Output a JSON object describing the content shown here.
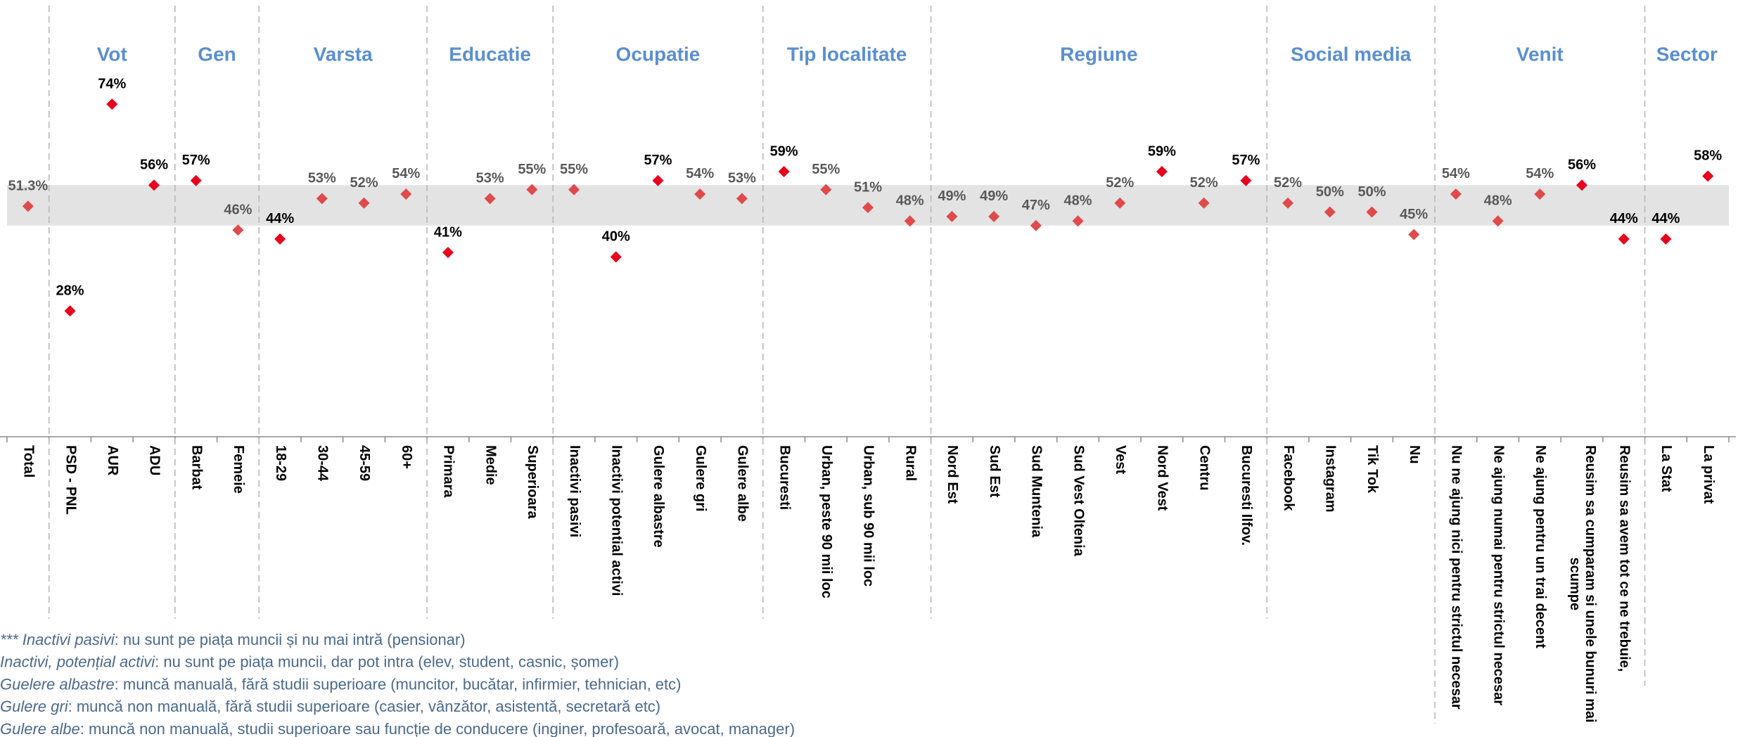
{
  "chart_data": {
    "type": "dot",
    "categories": [
      "Total",
      "PSD - PNL",
      "AUR",
      "ADU",
      "Barbat",
      "Femeie",
      "18-29",
      "30-44",
      "45-59",
      "60+",
      "Primara",
      "Medie",
      "Superioara",
      "Inactivi pasivi",
      "Inactivi potential activi",
      "Gulere albastre",
      "Gulere gri",
      "Gulere albe",
      "Bucuresti",
      "Urban, peste 90 mii loc",
      "Urban, sub 90 mii loc",
      "Rural",
      "Nord Est",
      "Sud Est",
      "Sud Muntenia",
      "Sud Vest Oltenia",
      "Vest",
      "Nord Vest",
      "Centru",
      "Bucuresti Ilfov.",
      "Facebook",
      "Instagram",
      "Tik Tok",
      "Nu",
      "Nu ne ajung nici pentru strictul necesar",
      "Ne ajung numai pentru strictul necesar",
      "Ne ajung pentru un trai decent",
      "Reusim sa cumparam si unele bunuri mai scumpe",
      "Reusim sa avem tot ce ne trebuie,",
      "La Stat",
      "La privat"
    ],
    "values": [
      51.3,
      28,
      74,
      56,
      57,
      46,
      44,
      53,
      52,
      54,
      41,
      53,
      55,
      55,
      40,
      57,
      54,
      53,
      59,
      55,
      51,
      48,
      49,
      49,
      47,
      48,
      52,
      59,
      52,
      57,
      52,
      50,
      50,
      45,
      54,
      48,
      54,
      56,
      44,
      44,
      58
    ],
    "value_labels": [
      "51.3%",
      "28%",
      "74%",
      "56%",
      "57%",
      "46%",
      "44%",
      "53%",
      "52%",
      "54%",
      "41%",
      "53%",
      "55%",
      "55%",
      "40%",
      "57%",
      "54%",
      "53%",
      "59%",
      "55%",
      "51%",
      "48%",
      "49%",
      "49%",
      "47%",
      "48%",
      "52%",
      "59%",
      "52%",
      "57%",
      "52%",
      "50%",
      "50%",
      "45%",
      "54%",
      "48%",
      "54%",
      "56%",
      "44%",
      "44%",
      "58%"
    ],
    "groups": [
      {
        "name": null,
        "count": 1
      },
      {
        "name": "Vot",
        "count": 3
      },
      {
        "name": "Gen",
        "count": 2
      },
      {
        "name": "Varsta",
        "count": 4
      },
      {
        "name": "Educatie",
        "count": 3
      },
      {
        "name": "Ocupatie",
        "count": 5
      },
      {
        "name": "Tip localitate",
        "count": 4
      },
      {
        "name": "Regiune",
        "count": 8
      },
      {
        "name": "Social media",
        "count": 4
      },
      {
        "name": "Venit",
        "count": 5
      },
      {
        "name": "Sector",
        "count": 2
      }
    ],
    "ylim": [
      0,
      95
    ],
    "band": [
      47,
      56
    ],
    "band_color": "#e3e3e3",
    "muted_range": [
      45,
      55
    ],
    "color": "#e8001c",
    "muted_color": "#e04a4a",
    "label_color": "#000000",
    "muted_label_color": "#595959",
    "footnotes": [
      {
        "term": "*** Inactivi pasivi",
        "text": ": nu sunt pe piața muncii și nu mai intră (pensionar)"
      },
      {
        "term": "Inactivi, potențial activi",
        "text": ": nu sunt pe piața muncii, dar pot intra (elev, student, casnic, șomer)"
      },
      {
        "term": "Guelere albastre",
        "text": ": muncă manuală, fără studii superioare (muncitor, bucătar, infirmier,  tehnician, etc)"
      },
      {
        "term": "Gulere gri",
        "text": ": muncă non manuală, fără studii superioare (casier, vânzător, asistentă, secretară etc)"
      },
      {
        "term": "Gulere albe",
        "text": ": muncă non manuală, studii superioare sau funcție de conducere (inginer, profesoară, avocat, manager)"
      }
    ]
  }
}
